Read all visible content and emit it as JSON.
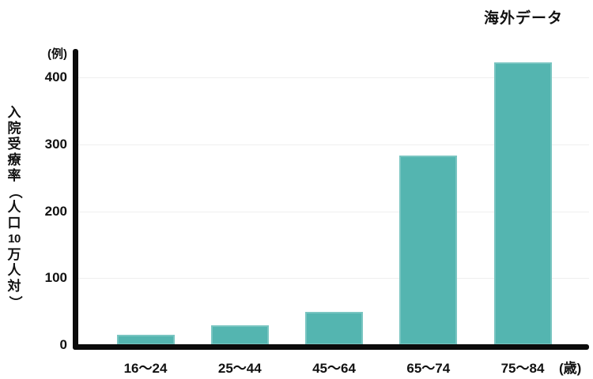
{
  "title": "海外データ",
  "y_axis": {
    "unit_label": "(例)",
    "title": "入院受療率（人口10万人対）",
    "title_chars": [
      {
        "ch": "入"
      },
      {
        "ch": "院"
      },
      {
        "ch": "受"
      },
      {
        "ch": "療"
      },
      {
        "ch": "率"
      },
      {
        "ch": "（",
        "rot": true
      },
      {
        "ch": "人"
      },
      {
        "ch": "口"
      },
      {
        "ch": "10",
        "num": true
      },
      {
        "ch": "万"
      },
      {
        "ch": "人"
      },
      {
        "ch": "対"
      },
      {
        "ch": "）",
        "rot": true
      }
    ]
  },
  "x_axis": {
    "unit_label": "(歳)"
  },
  "chart_data": {
    "type": "bar",
    "title": "海外データ",
    "categories": [
      "16〜24",
      "25〜44",
      "45〜64",
      "65〜74",
      "75〜84"
    ],
    "values": [
      15,
      30,
      50,
      283,
      423
    ],
    "xlabel": "(歳)",
    "ylabel": "入院受療率（人口10万人対）",
    "y_unit_label": "(例)",
    "ylim": [
      0,
      450
    ],
    "yticks": [
      0,
      100,
      200,
      300,
      400
    ],
    "bar_color": "#54b5b0",
    "axis_color": "#0b0b0b",
    "gridline_color": "#efefef",
    "grid": "horizontal faint lines at yticks",
    "legend": false
  }
}
